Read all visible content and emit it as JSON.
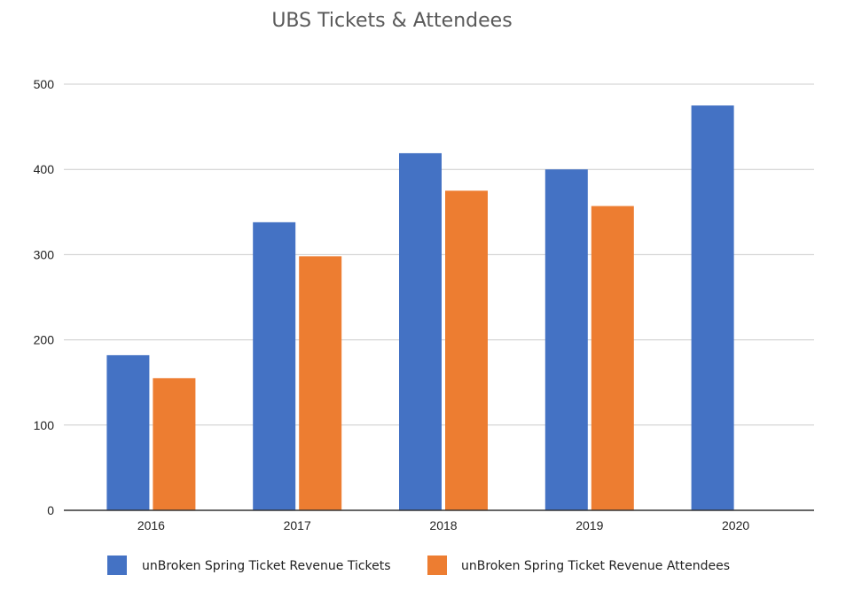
{
  "chart_data": {
    "type": "bar",
    "title": "UBS Tickets & Attendees",
    "xlabel": "",
    "ylabel": "",
    "categories": [
      "2016",
      "2017",
      "2018",
      "2019",
      "2020"
    ],
    "series": [
      {
        "name": "unBroken Spring Ticket Revenue Tickets",
        "color": "#4472C4",
        "values": [
          182,
          338,
          419,
          400,
          475
        ]
      },
      {
        "name": "unBroken Spring Ticket Revenue Attendees",
        "color": "#ED7D31",
        "values": [
          155,
          298,
          375,
          357,
          null
        ]
      }
    ],
    "ylim": [
      0,
      500
    ],
    "yticks": [
      0,
      100,
      200,
      300,
      400,
      500
    ],
    "grid": true,
    "legend_position": "bottom"
  }
}
